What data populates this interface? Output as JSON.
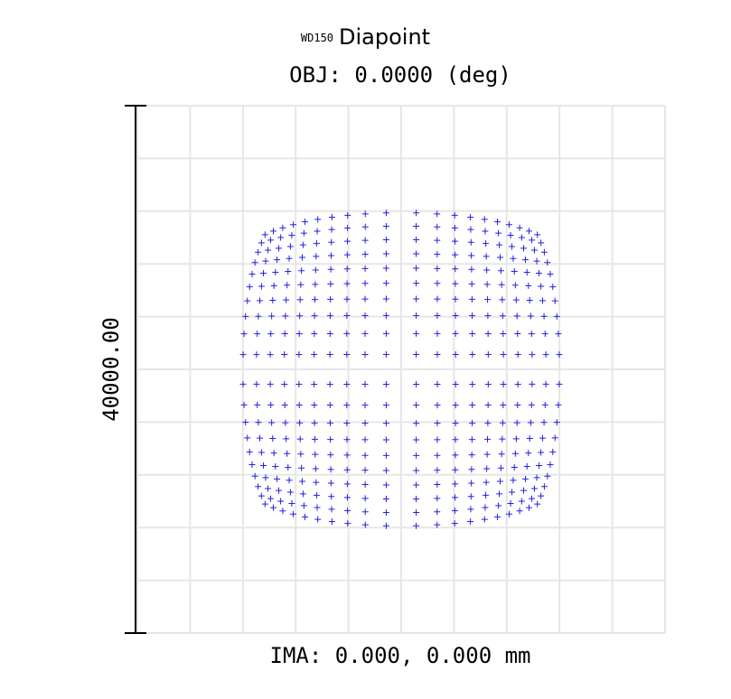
{
  "title": {
    "tag": "WD150",
    "text": "Diapoint"
  },
  "subtitle": "OBJ: 0.0000 (deg)",
  "scale_label": "40000.00",
  "footer": "IMA: 0.000, 0.000 mm",
  "colors": {
    "points": "#2222dd",
    "grid": "#e6e6e6",
    "scale_bar": "#000000"
  },
  "chart_data": {
    "type": "scatter",
    "title": "Diapoint",
    "subtitle": "OBJ: 0.0000 (deg)",
    "xlabel": "IMA: 0.000, 0.000 mm",
    "ylabel": "40000.00",
    "marker": "+",
    "grid": true,
    "grid_divisions": 10,
    "xlim": [
      -1,
      1
    ],
    "ylim": [
      -1,
      1
    ],
    "pattern": {
      "description": "square spot pattern filling about 60% of the plot width, slightly barrel-shaped with rounded corners, points denser toward edges",
      "grid_n": 20,
      "extent": 0.6,
      "corner_softening": 0.14
    }
  }
}
